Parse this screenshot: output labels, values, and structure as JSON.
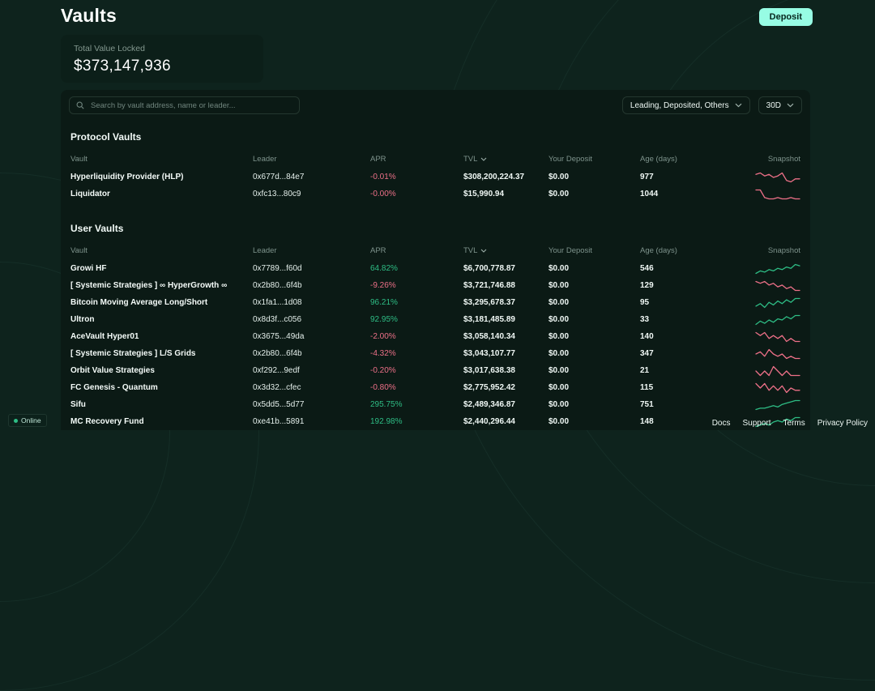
{
  "page": {
    "title": "Vaults",
    "deposit_button": "Deposit",
    "tvl_label": "Total Value Locked",
    "tvl_value": "$373,147,936"
  },
  "toolbar": {
    "search_placeholder": "Search by vault address, name or leader...",
    "filter_dropdown": "Leading, Deposited, Others",
    "period_dropdown": "30D"
  },
  "columns": [
    "Vault",
    "Leader",
    "APR",
    "TVL",
    "Your Deposit",
    "Age (days)",
    "Snapshot"
  ],
  "protocol_vaults": {
    "heading": "Protocol Vaults",
    "rows": [
      {
        "vault": "Hyperliquidity Provider (HLP)",
        "leader": "0x677d...84e7",
        "apr": "-0.01%",
        "tvl": "$308,200,224.37",
        "deposit": "$0.00",
        "age": "977",
        "trend": "down",
        "spark": [
          7,
          8,
          6,
          7,
          5,
          6,
          8,
          3,
          2,
          4,
          4
        ]
      },
      {
        "vault": "Liquidator",
        "leader": "0xfc13...80c9",
        "apr": "-0.00%",
        "tvl": "$15,990.94",
        "deposit": "$0.00",
        "age": "1044",
        "trend": "down",
        "spark": [
          9,
          9,
          3,
          2,
          2,
          3,
          2,
          2,
          3,
          2,
          2
        ]
      }
    ]
  },
  "user_vaults": {
    "heading": "User Vaults",
    "rows": [
      {
        "vault": "Growi HF",
        "leader": "0x7789...f60d",
        "apr": "64.82%",
        "tvl": "$6,700,778.87",
        "deposit": "$0.00",
        "age": "546",
        "trend": "up",
        "spark": [
          2,
          4,
          3,
          5,
          4,
          6,
          5,
          7,
          6,
          9,
          8
        ]
      },
      {
        "vault": "[ Systemic Strategies ] ∞ HyperGrowth ∞",
        "leader": "0x2b80...6f4b",
        "apr": "-9.26%",
        "tvl": "$3,721,746.88",
        "deposit": "$0.00",
        "age": "129",
        "trend": "down",
        "spark": [
          8,
          7,
          8,
          6,
          7,
          5,
          6,
          4,
          5,
          3,
          3
        ]
      },
      {
        "vault": "Bitcoin Moving Average Long/Short",
        "leader": "0x1fa1...1d08",
        "apr": "96.21%",
        "tvl": "$3,295,678.37",
        "deposit": "$0.00",
        "age": "95",
        "trend": "up",
        "spark": [
          3,
          5,
          2,
          6,
          4,
          7,
          5,
          8,
          6,
          9,
          9
        ]
      },
      {
        "vault": "Ultron",
        "leader": "0x8d3f...c056",
        "apr": "92.95%",
        "tvl": "$3,181,485.89",
        "deposit": "$0.00",
        "age": "33",
        "trend": "up",
        "spark": [
          2,
          5,
          3,
          6,
          4,
          7,
          6,
          9,
          7,
          10,
          10
        ]
      },
      {
        "vault": "AceVault Hyper01",
        "leader": "0x3675...49da",
        "apr": "-2.00%",
        "tvl": "$3,058,140.34",
        "deposit": "$0.00",
        "age": "140",
        "trend": "down",
        "spark": [
          7,
          6,
          7,
          5,
          6,
          5,
          6,
          4,
          5,
          4,
          4
        ]
      },
      {
        "vault": "[ Systemic Strategies ] L/S Grids",
        "leader": "0x2b80...6f4b",
        "apr": "-4.32%",
        "tvl": "$3,043,107.77",
        "deposit": "$0.00",
        "age": "347",
        "trend": "down",
        "spark": [
          6,
          7,
          5,
          8,
          6,
          5,
          6,
          4,
          5,
          4,
          4
        ]
      },
      {
        "vault": "Orbit Value Strategies",
        "leader": "0xf292...9edf",
        "apr": "-0.20%",
        "tvl": "$3,017,638.38",
        "deposit": "$0.00",
        "age": "21",
        "trend": "down",
        "spark": [
          6,
          5,
          6,
          5,
          7,
          6,
          5,
          6,
          5,
          5,
          5
        ]
      },
      {
        "vault": "FC Genesis - Quantum",
        "leader": "0x3d32...cfec",
        "apr": "-0.80%",
        "tvl": "$2,775,952.42",
        "deposit": "$0.00",
        "age": "115",
        "trend": "down",
        "spark": [
          7,
          5,
          7,
          4,
          6,
          4,
          6,
          3,
          5,
          4,
          4
        ]
      },
      {
        "vault": "Sifu",
        "leader": "0x5dd5...5d77",
        "apr": "295.75%",
        "tvl": "$2,489,346.87",
        "deposit": "$0.00",
        "age": "751",
        "trend": "up",
        "spark": [
          2,
          3,
          3,
          4,
          5,
          4,
          6,
          7,
          8,
          9,
          9
        ]
      },
      {
        "vault": "MC Recovery Fund",
        "leader": "0xe41b...5891",
        "apr": "192.98%",
        "tvl": "$2,440,296.44",
        "deposit": "$0.00",
        "age": "148",
        "trend": "up",
        "spark": [
          3,
          4,
          5,
          4,
          6,
          7,
          6,
          8,
          7,
          9,
          9
        ]
      }
    ]
  },
  "footer": {
    "online": "Online",
    "links": [
      "Docs",
      "Support",
      "Terms",
      "Privacy Policy"
    ]
  },
  "colors": {
    "positive": "#2ebd85",
    "negative": "#ed7088",
    "accent": "#97fce4"
  }
}
